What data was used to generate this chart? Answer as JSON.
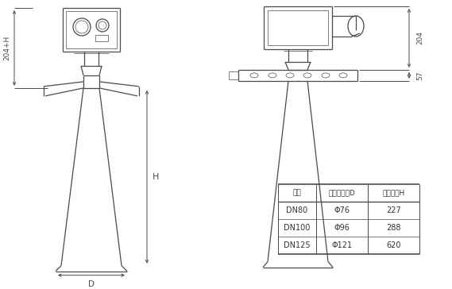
{
  "background_color": "#ffffff",
  "line_color": "#4a4a4a",
  "dim_color": "#4a4a4a",
  "table": {
    "headers": [
      "法兰",
      "测孔口直径D",
      "测孔高度H"
    ],
    "rows": [
      [
        "DN80",
        "Φ76",
        "227"
      ],
      [
        "DN100",
        "Φ96",
        "288"
      ],
      [
        "DN125",
        "Φ121",
        "620"
      ]
    ]
  },
  "dim_labels": {
    "height_total": "204+H",
    "height_h": "H",
    "dim_204": "204",
    "dim_57": "57",
    "dim_d": "D"
  },
  "figsize": [
    5.69,
    3.64
  ],
  "dpi": 100
}
